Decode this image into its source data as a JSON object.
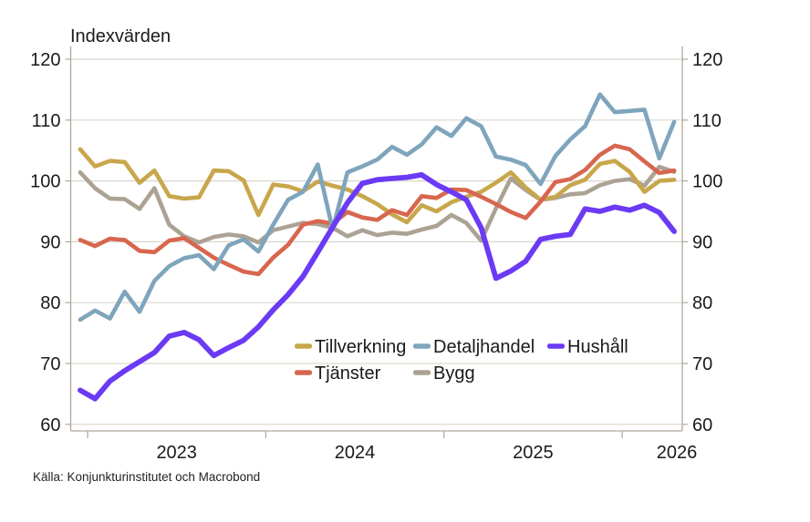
{
  "title": "Indexvärden",
  "source": "Källa: Konjunkturinstitutet och Macrobond",
  "y_axis": {
    "ticks": [
      120,
      110,
      100,
      90,
      80,
      70,
      60
    ],
    "min": 60,
    "max": 120
  },
  "x_axis": {
    "year_labels": [
      "2023",
      "2024",
      "2025",
      "2026"
    ]
  },
  "colors": {
    "tillverkning": "#C8A64B",
    "detaljhandel": "#7EA5BC",
    "hushall": "#6B3AF5",
    "tjanster": "#D8664F",
    "bygg": "#ACA294",
    "gridline": "#DAD6CE",
    "axis": "#AFA89B",
    "text": "#1a1a1a"
  },
  "chart_data": {
    "type": "line",
    "title": "Indexvärden",
    "ylabel": "Indexvärden",
    "xlabel": "",
    "ylim": [
      60,
      120
    ],
    "grid": true,
    "legend_position": "inside-bottom",
    "x": [
      "2022-12",
      "2023-01",
      "2023-02",
      "2023-03",
      "2023-04",
      "2023-05",
      "2023-06",
      "2023-07",
      "2023-08",
      "2023-09",
      "2023-10",
      "2023-11",
      "2023-12",
      "2024-01",
      "2024-02",
      "2024-03",
      "2024-04",
      "2024-05",
      "2024-06",
      "2024-07",
      "2024-08",
      "2024-09",
      "2024-10",
      "2024-11",
      "2024-12",
      "2025-01",
      "2025-02",
      "2025-03",
      "2025-04",
      "2025-05",
      "2025-06",
      "2025-07",
      "2025-08",
      "2025-09",
      "2025-10",
      "2025-11",
      "2025-12",
      "2026-01",
      "2026-02",
      "2026-03",
      "2026-04"
    ],
    "series": [
      {
        "name": "Tillverkning",
        "color": "#C8A64B",
        "values": [
          105.2,
          102.4,
          103.3,
          103.1,
          99.7,
          101.7,
          97.5,
          97.1,
          97.3,
          101.7,
          101.6,
          100.1,
          94.4,
          99.4,
          99.1,
          98.3,
          99.9,
          99.2,
          98.6,
          97.5,
          96.2,
          94.5,
          93.2,
          96.0,
          95.0,
          96.5,
          97.4,
          98.2,
          99.7,
          101.4,
          98.9,
          96.9,
          97.4,
          99.3,
          100.2,
          102.8,
          103.3,
          101.5,
          98.2,
          100.0,
          100.2
        ]
      },
      {
        "name": "Detaljhandel",
        "color": "#7EA5BC",
        "values": [
          77.2,
          78.7,
          77.4,
          81.8,
          78.5,
          83.6,
          86.0,
          87.3,
          87.8,
          85.5,
          89.4,
          90.4,
          88.4,
          92.8,
          96.9,
          98.2,
          102.7,
          92.0,
          101.4,
          102.4,
          103.5,
          105.6,
          104.3,
          106.0,
          108.8,
          107.4,
          110.3,
          109.0,
          104.0,
          103.5,
          102.6,
          99.5,
          104.1,
          106.8,
          109.0,
          114.2,
          111.3,
          111.5,
          111.7,
          103.7,
          109.7
        ]
      },
      {
        "name": "Hushåll",
        "color": "#6B3AF5",
        "values": [
          65.6,
          64.2,
          67.1,
          68.8,
          70.3,
          71.8,
          74.5,
          75.1,
          73.9,
          71.3,
          72.6,
          73.8,
          76.0,
          78.8,
          81.3,
          84.3,
          88.3,
          92.4,
          96.4,
          99.6,
          100.2,
          100.4,
          100.6,
          101.0,
          99.4,
          98.2,
          96.9,
          92.3,
          84.0,
          85.2,
          86.8,
          90.4,
          90.9,
          91.2,
          95.4,
          95.0,
          95.7,
          95.2,
          96.0,
          94.8,
          91.7
        ]
      },
      {
        "name": "Tjänster",
        "color": "#D8664F",
        "values": [
          90.3,
          89.3,
          90.5,
          90.3,
          88.5,
          88.3,
          90.2,
          90.6,
          89.0,
          87.4,
          86.2,
          85.1,
          84.7,
          87.4,
          89.5,
          92.8,
          93.4,
          93.0,
          94.9,
          94.0,
          93.6,
          95.2,
          94.4,
          97.5,
          97.2,
          98.6,
          98.5,
          97.4,
          96.2,
          94.9,
          93.9,
          96.6,
          99.8,
          100.3,
          101.8,
          104.3,
          105.8,
          105.2,
          103.2,
          101.3,
          101.7
        ]
      },
      {
        "name": "Bygg",
        "color": "#ACA294",
        "values": [
          101.4,
          98.8,
          97.1,
          97.0,
          95.4,
          98.8,
          92.8,
          90.9,
          89.9,
          90.8,
          91.2,
          90.9,
          89.9,
          91.9,
          92.5,
          93.1,
          92.9,
          92.3,
          90.9,
          91.9,
          91.1,
          91.5,
          91.3,
          92.0,
          92.6,
          94.4,
          93.1,
          90.2,
          95.5,
          100.4,
          98.5,
          96.9,
          97.2,
          97.8,
          98.0,
          99.3,
          100.0,
          100.3,
          99.2,
          102.3,
          101.5
        ]
      }
    ]
  }
}
